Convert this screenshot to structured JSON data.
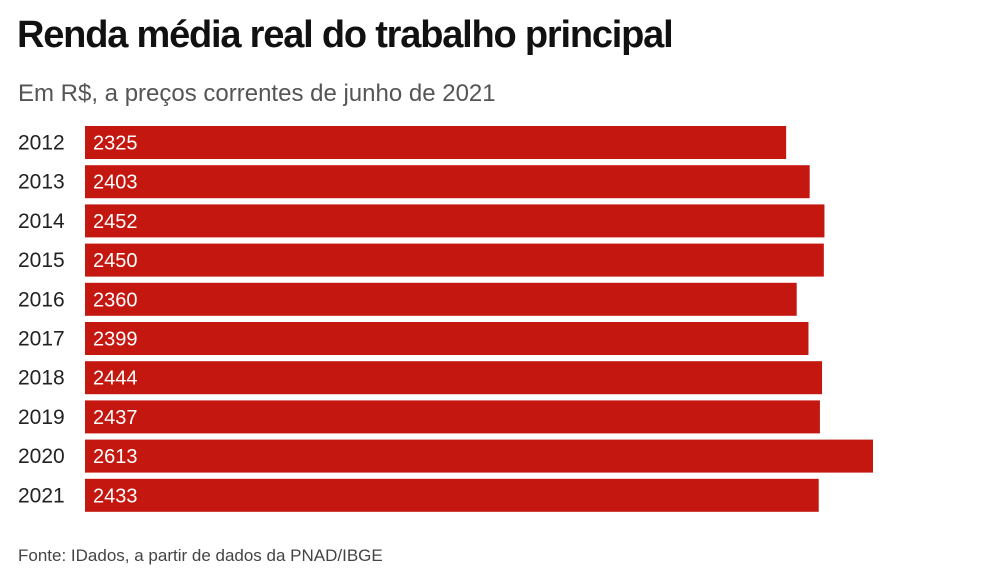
{
  "chart_data": {
    "type": "bar",
    "orientation": "horizontal",
    "title": "Renda média real do trabalho principal",
    "subtitle": "Em R$, a preços correntes de junho de 2021",
    "source": "Fonte: IDados, a partir de dados da PNAD/IBGE",
    "categories": [
      "2012",
      "2013",
      "2014",
      "2015",
      "2016",
      "2017",
      "2018",
      "2019",
      "2020",
      "2021"
    ],
    "values": [
      2325,
      2403,
      2452,
      2450,
      2360,
      2399,
      2444,
      2437,
      2613,
      2433
    ],
    "data_labels": [
      "2325",
      "2403",
      "2452",
      "2450",
      "2360",
      "2399",
      "2444",
      "2437",
      "2613",
      "2433"
    ],
    "bar_color": "#c4170f",
    "label_color": "#ffffff",
    "xlim": [
      0,
      2613
    ],
    "grid": false,
    "legend": "none"
  }
}
